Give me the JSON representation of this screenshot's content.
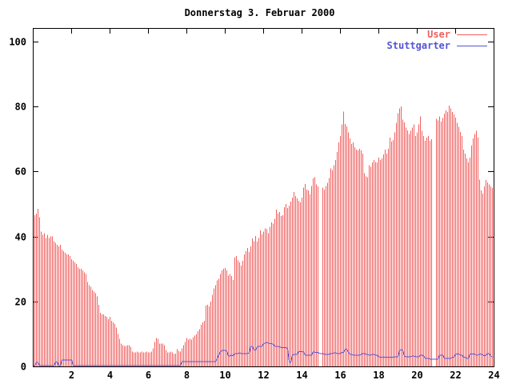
{
  "window": {
    "background": "#ffffff",
    "frame_color": "#000000"
  },
  "legend": {
    "items": [
      "User",
      "Stuttgarter"
    ]
  },
  "chart_data": {
    "type": "bar",
    "title": "Donnerstag 3. Februar 2000",
    "xlabel": "",
    "ylabel": "",
    "xlim": [
      0,
      24
    ],
    "ylim": [
      0,
      104.2
    ],
    "grid": false,
    "legend_position": "top-right-inside",
    "x_ticks": [
      2,
      4,
      6,
      8,
      10,
      12,
      14,
      16,
      18,
      20,
      22,
      24
    ],
    "y_ticks": [
      0,
      20,
      40,
      60,
      80,
      100
    ],
    "sample_interval_minutes": 5,
    "series": [
      {
        "name": "User",
        "type": "impulses",
        "color": "#f25f5f",
        "values": [
          44,
          46.5,
          47,
          48.5,
          46,
          41.5,
          40.5,
          41,
          39.5,
          40.5,
          39.5,
          40,
          40,
          38.5,
          38,
          37.5,
          37,
          37.5,
          36,
          35.5,
          35,
          34.5,
          34.5,
          34,
          33,
          32.5,
          32,
          31.5,
          30.5,
          30,
          30,
          29.5,
          29,
          28.5,
          26,
          25,
          24.5,
          23.5,
          23,
          22.5,
          21.5,
          19,
          16.5,
          16,
          16,
          15.5,
          15.3,
          14.5,
          15.3,
          14,
          13.5,
          13,
          12,
          10,
          8.5,
          7,
          6.5,
          6.3,
          6.3,
          6.5,
          6.5,
          6,
          4.5,
          4.3,
          4.3,
          4.5,
          4.3,
          4.3,
          4.5,
          4.3,
          4.3,
          4.5,
          4.3,
          4.3,
          4.5,
          5.5,
          7.5,
          8.8,
          8.5,
          7,
          7,
          7,
          6.5,
          5,
          4.3,
          4.3,
          4.5,
          4.3,
          3.8,
          4,
          5.3,
          4.8,
          4.5,
          5.5,
          6.5,
          7.5,
          8.8,
          8.2,
          8.5,
          8.3,
          9,
          9.5,
          10,
          10.8,
          11.5,
          12.8,
          13.5,
          14,
          18.7,
          19,
          18.5,
          20,
          22,
          24,
          25,
          26.5,
          27,
          28.5,
          29.5,
          30,
          30.3,
          29.5,
          28,
          28.5,
          27.8,
          26.6,
          33.5,
          34,
          32.7,
          32,
          31,
          32.5,
          34.5,
          35.5,
          36.5,
          35.2,
          37,
          39.4,
          38.5,
          40.1,
          38.4,
          39.5,
          41.9,
          40.6,
          41.5,
          42.5,
          42.3,
          41,
          43,
          44.3,
          44,
          45.5,
          48.3,
          47,
          47.5,
          46.3,
          46.5,
          49,
          50,
          48.8,
          49.5,
          50.7,
          52,
          53.7,
          52.5,
          51.7,
          51,
          50.5,
          52,
          55,
          56.2,
          54.5,
          54.2,
          53,
          55.5,
          57.9,
          58.2,
          56,
          55.4,
          0,
          0,
          55,
          54.5,
          55.5,
          56.5,
          58,
          61,
          60.5,
          62,
          63.5,
          66,
          69,
          71,
          74.5,
          78.5,
          74.6,
          73.9,
          72,
          70.2,
          68.5,
          69,
          67.5,
          66.8,
          66.5,
          67,
          66.5,
          65.5,
          59.5,
          58.5,
          58.2,
          62,
          61.5,
          62.8,
          63.5,
          63,
          62.8,
          64.3,
          63.5,
          64,
          65.3,
          66.8,
          65.5,
          67,
          70.4,
          69.2,
          69.7,
          72,
          75,
          78,
          79.5,
          80,
          76,
          75.1,
          73.5,
          72.7,
          71.5,
          72.5,
          73.5,
          74.5,
          71,
          72,
          74.5,
          77,
          72.5,
          71,
          69.5,
          70.5,
          71,
          69.5,
          70,
          0,
          0,
          76.3,
          75.8,
          77,
          75.4,
          76.5,
          77.8,
          78.8,
          78.3,
          80.3,
          79.5,
          78.3,
          77.6,
          76.6,
          75,
          73.8,
          72.2,
          70.9,
          66.8,
          65.5,
          64,
          62.8,
          64.3,
          68,
          70.2,
          71.6,
          72.5,
          70.5,
          57.5,
          54.2,
          53.2,
          55.4,
          57.4,
          56.6,
          56.1,
          55.4,
          54.9
        ]
      },
      {
        "name": "Stuttgarter",
        "type": "line",
        "color": "#5454d4",
        "values": [
          0.3,
          0.3,
          1.2,
          1.2,
          0.3,
          0.3,
          0.3,
          0.3,
          0.3,
          0.3,
          0.3,
          0.3,
          0.3,
          0.3,
          1.3,
          1.3,
          0.3,
          0.3,
          2,
          2,
          2,
          2,
          2,
          2,
          2,
          0.3,
          0.3,
          0.3,
          0.3,
          0.3,
          0.3,
          0.3,
          0.3,
          0.3,
          0.3,
          0.3,
          0.3,
          0.3,
          0.3,
          0.3,
          0.3,
          0.3,
          0.3,
          0.3,
          0.3,
          0.3,
          0.3,
          0.3,
          0.3,
          0.3,
          0.3,
          0.3,
          0.3,
          0.3,
          0.3,
          0.3,
          0.3,
          0.3,
          0.3,
          0.3,
          0.3,
          0.3,
          0.3,
          0.3,
          0.3,
          0.3,
          0.3,
          0.3,
          0.3,
          0.3,
          0.3,
          0.3,
          0.3,
          0.3,
          0.3,
          0.3,
          0.3,
          0.3,
          0.3,
          0.3,
          0.3,
          0.3,
          0.3,
          0.3,
          0.3,
          0.3,
          0.3,
          0.3,
          0.3,
          0.3,
          0.3,
          0.3,
          0.3,
          1.5,
          1.5,
          1.5,
          1.5,
          1.5,
          1.5,
          1.5,
          1.5,
          1.5,
          1.5,
          1.5,
          1.5,
          1.5,
          1.5,
          1.5,
          1.5,
          1.5,
          1.5,
          1.5,
          1.5,
          1.5,
          1.5,
          2.5,
          3.5,
          4.5,
          4.9,
          4.9,
          4.9,
          4.7,
          3.2,
          3.2,
          3.5,
          3.2,
          4,
          4,
          4,
          4.2,
          4,
          4,
          4,
          4,
          4,
          4.2,
          6.2,
          6.2,
          5,
          5,
          6,
          6.2,
          6.2,
          6.2,
          7,
          7.2,
          7.4,
          7.2,
          7,
          7,
          6.8,
          6.2,
          6.2,
          6.2,
          6,
          5.8,
          5.8,
          5.8,
          5.8,
          5.5,
          1.5,
          1.2,
          3.5,
          3.7,
          3.7,
          3.7,
          4.6,
          4.6,
          4.6,
          4.4,
          3.5,
          3.5,
          3.5,
          3.5,
          3.5,
          4.5,
          4.3,
          4.3,
          4.3,
          4,
          4,
          4,
          3.7,
          3.7,
          3.7,
          3.7,
          4,
          4,
          4.2,
          4.2,
          4,
          4,
          4,
          4.3,
          4.3,
          5.3,
          5.3,
          4.3,
          3.7,
          3.7,
          3.5,
          3.5,
          3.5,
          3.5,
          3.5,
          3.7,
          4,
          4,
          3.7,
          3.7,
          3.5,
          3.5,
          3.7,
          3.7,
          3.5,
          3.5,
          3,
          2.8,
          2.8,
          2.8,
          2.8,
          2.8,
          2.8,
          2.8,
          2.8,
          2.8,
          3,
          3,
          3,
          4.9,
          5.2,
          4.9,
          3.2,
          3,
          3,
          3,
          3,
          3.2,
          3.2,
          3,
          3,
          3,
          3.5,
          3.5,
          3.2,
          2.5,
          2.5,
          2.5,
          2.2,
          2.2,
          2.2,
          2.2,
          2.2,
          2.2,
          3.5,
          3.5,
          3.5,
          2.5,
          2.5,
          2.5,
          2.5,
          2.5,
          2.8,
          2.8,
          3.8,
          3.8,
          3.8,
          3.5,
          3.5,
          2.8,
          2.8,
          2.5,
          2.5,
          3.8,
          3.8,
          3.8,
          3.8,
          3.5,
          3.5,
          3.8,
          3.8,
          3.5,
          3.2,
          3.5,
          4,
          4,
          3.2,
          2.8
        ]
      }
    ]
  }
}
